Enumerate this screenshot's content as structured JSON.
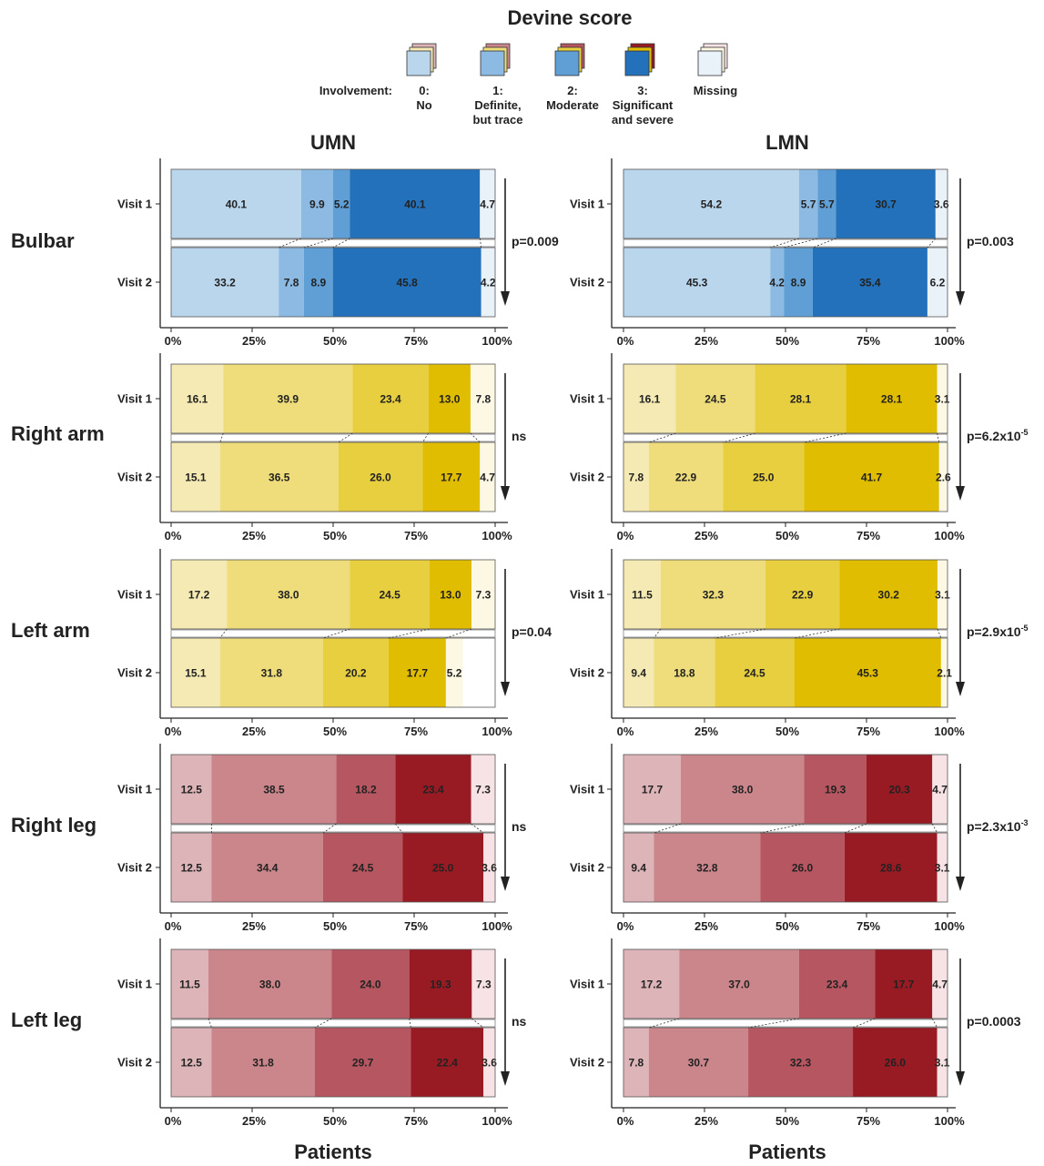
{
  "legend": {
    "title": "Devine score",
    "prefix": "Involvement:",
    "items": [
      {
        "code": "0:",
        "text": [
          "No"
        ]
      },
      {
        "code": "1:",
        "text": [
          "Definite,",
          "but trace"
        ]
      },
      {
        "code": "2:",
        "text": [
          "Moderate"
        ]
      },
      {
        "code": "3:",
        "text": [
          "Significant",
          "and severe"
        ]
      },
      {
        "code": "",
        "text": [
          "Missing"
        ]
      }
    ]
  },
  "column_titles": [
    "UMN",
    "LMN"
  ],
  "region_labels": [
    "Bulbar",
    "Right arm",
    "Left arm",
    "Right leg",
    "Left leg"
  ],
  "x_title": "Patients",
  "palettes": {
    "blue": [
      "#bad6ec",
      "#8cbae2",
      "#5f9fd5",
      "#2371ba",
      "#e9f1f9"
    ],
    "yellow": [
      "#f5eab4",
      "#eedd7a",
      "#e8cf40",
      "#e0bd01",
      "#fcf8e4"
    ],
    "red": [
      "#ddb4b8",
      "#ca868b",
      "#b65660",
      "#981b24",
      "#f7e3e5"
    ]
  },
  "chart_data": [
    {
      "type": "bar",
      "orientation": "horizontal",
      "stacked": true,
      "column": "UMN",
      "region": "Bulbar",
      "palette": "blue",
      "categories": [
        "Visit 1",
        "Visit 2"
      ],
      "segments": [
        "0",
        "1",
        "2",
        "3",
        "Missing"
      ],
      "values": [
        [
          40.1,
          9.9,
          5.2,
          40.1,
          4.7
        ],
        [
          33.2,
          7.8,
          8.9,
          45.8,
          4.2
        ]
      ],
      "xlim": [
        0,
        100
      ],
      "xticks": [
        "0%",
        "25%",
        "50%",
        "75%",
        "100%"
      ],
      "stat": "p=0.009"
    },
    {
      "type": "bar",
      "orientation": "horizontal",
      "stacked": true,
      "column": "LMN",
      "region": "Bulbar",
      "palette": "blue",
      "categories": [
        "Visit 1",
        "Visit 2"
      ],
      "segments": [
        "0",
        "1",
        "2",
        "3",
        "Missing"
      ],
      "values": [
        [
          54.2,
          5.7,
          5.7,
          30.7,
          3.6
        ],
        [
          45.3,
          4.2,
          8.9,
          35.4,
          6.2
        ]
      ],
      "xlim": [
        0,
        100
      ],
      "xticks": [
        "0%",
        "25%",
        "50%",
        "75%",
        "100%"
      ],
      "stat": "p=0.003"
    },
    {
      "type": "bar",
      "orientation": "horizontal",
      "stacked": true,
      "column": "UMN",
      "region": "Right arm",
      "palette": "yellow",
      "categories": [
        "Visit 1",
        "Visit 2"
      ],
      "segments": [
        "0",
        "1",
        "2",
        "3",
        "Missing"
      ],
      "values": [
        [
          16.1,
          39.9,
          23.4,
          13.0,
          7.8
        ],
        [
          15.1,
          36.5,
          26.0,
          17.7,
          4.7
        ]
      ],
      "xlim": [
        0,
        100
      ],
      "xticks": [
        "0%",
        "25%",
        "50%",
        "75%",
        "100%"
      ],
      "stat": "ns"
    },
    {
      "type": "bar",
      "orientation": "horizontal",
      "stacked": true,
      "column": "LMN",
      "region": "Right arm",
      "palette": "yellow",
      "categories": [
        "Visit 1",
        "Visit 2"
      ],
      "segments": [
        "0",
        "1",
        "2",
        "3",
        "Missing"
      ],
      "values": [
        [
          16.1,
          24.5,
          28.1,
          28.1,
          3.1
        ],
        [
          7.8,
          22.9,
          25.0,
          41.7,
          2.6
        ]
      ],
      "xlim": [
        0,
        100
      ],
      "xticks": [
        "0%",
        "25%",
        "50%",
        "75%",
        "100%"
      ],
      "stat": "p=6.2x10",
      "stat_exp": "-5"
    },
    {
      "type": "bar",
      "orientation": "horizontal",
      "stacked": true,
      "column": "UMN",
      "region": "Left arm",
      "palette": "yellow",
      "categories": [
        "Visit 1",
        "Visit 2"
      ],
      "segments": [
        "0",
        "1",
        "2",
        "3",
        "Missing"
      ],
      "values": [
        [
          17.2,
          38.0,
          24.5,
          13.0,
          7.3
        ],
        [
          15.1,
          31.8,
          20.2,
          17.7,
          5.2
        ]
      ],
      "xlim": [
        0,
        100
      ],
      "xticks": [
        "0%",
        "25%",
        "50%",
        "75%",
        "100%"
      ],
      "stat": "p=0.04"
    },
    {
      "type": "bar",
      "orientation": "horizontal",
      "stacked": true,
      "column": "LMN",
      "region": "Left arm",
      "palette": "yellow",
      "categories": [
        "Visit 1",
        "Visit 2"
      ],
      "segments": [
        "0",
        "1",
        "2",
        "3",
        "Missing"
      ],
      "values": [
        [
          11.5,
          32.3,
          22.9,
          30.2,
          3.1
        ],
        [
          9.4,
          18.8,
          24.5,
          45.3,
          2.1
        ]
      ],
      "xlim": [
        0,
        100
      ],
      "xticks": [
        "0%",
        "25%",
        "50%",
        "75%",
        "100%"
      ],
      "stat": "p=2.9x10",
      "stat_exp": "-5"
    },
    {
      "type": "bar",
      "orientation": "horizontal",
      "stacked": true,
      "column": "UMN",
      "region": "Right leg",
      "palette": "red",
      "categories": [
        "Visit 1",
        "Visit 2"
      ],
      "segments": [
        "0",
        "1",
        "2",
        "3",
        "Missing"
      ],
      "values": [
        [
          12.5,
          38.5,
          18.2,
          23.4,
          7.3
        ],
        [
          12.5,
          34.4,
          24.5,
          25.0,
          3.6
        ]
      ],
      "xlim": [
        0,
        100
      ],
      "xticks": [
        "0%",
        "25%",
        "50%",
        "75%",
        "100%"
      ],
      "stat": "ns"
    },
    {
      "type": "bar",
      "orientation": "horizontal",
      "stacked": true,
      "column": "LMN",
      "region": "Right leg",
      "palette": "red",
      "categories": [
        "Visit 1",
        "Visit 2"
      ],
      "segments": [
        "0",
        "1",
        "2",
        "3",
        "Missing"
      ],
      "values": [
        [
          17.7,
          38.0,
          19.3,
          20.3,
          4.7
        ],
        [
          9.4,
          32.8,
          26.0,
          28.6,
          3.1
        ]
      ],
      "xlim": [
        0,
        100
      ],
      "xticks": [
        "0%",
        "25%",
        "50%",
        "75%",
        "100%"
      ],
      "stat": "p=2.3x10",
      "stat_exp": "-3"
    },
    {
      "type": "bar",
      "orientation": "horizontal",
      "stacked": true,
      "column": "UMN",
      "region": "Left leg",
      "palette": "red",
      "categories": [
        "Visit 1",
        "Visit 2"
      ],
      "segments": [
        "0",
        "1",
        "2",
        "3",
        "Missing"
      ],
      "values": [
        [
          11.5,
          38.0,
          24.0,
          19.3,
          7.3
        ],
        [
          12.5,
          31.8,
          29.7,
          22.4,
          3.6
        ]
      ],
      "xlim": [
        0,
        100
      ],
      "xticks": [
        "0%",
        "25%",
        "50%",
        "75%",
        "100%"
      ],
      "stat": "ns"
    },
    {
      "type": "bar",
      "orientation": "horizontal",
      "stacked": true,
      "column": "LMN",
      "region": "Left leg",
      "palette": "red",
      "categories": [
        "Visit 1",
        "Visit 2"
      ],
      "segments": [
        "0",
        "1",
        "2",
        "3",
        "Missing"
      ],
      "values": [
        [
          17.2,
          37.0,
          23.4,
          17.7,
          4.7
        ],
        [
          7.8,
          30.7,
          32.3,
          26.0,
          3.1
        ]
      ],
      "xlim": [
        0,
        100
      ],
      "xticks": [
        "0%",
        "25%",
        "50%",
        "75%",
        "100%"
      ],
      "stat": "p=0.0003"
    }
  ]
}
